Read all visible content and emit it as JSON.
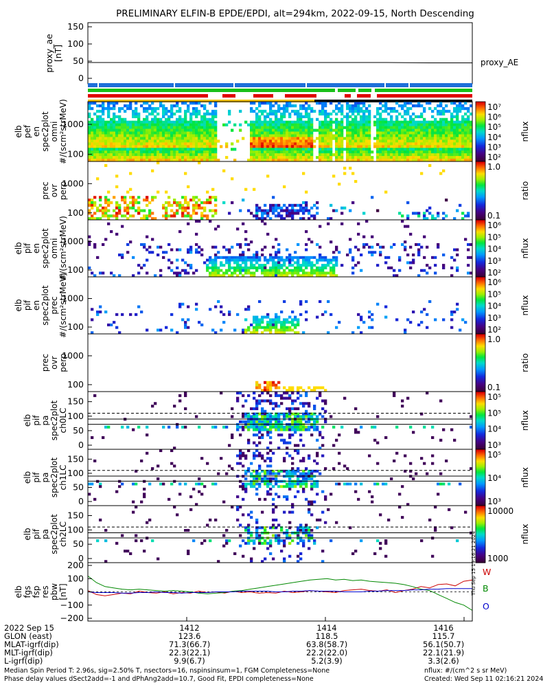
{
  "title": "PRELIMINARY ELFIN-B EPDE/EPDI, alt=294km, 2022-09-15, North Descending",
  "chart_data": {
    "type": "heatmap",
    "panels": [
      {
        "id": "proxy-ae",
        "ylabel": [
          "proxy_ae",
          "[nT]"
        ],
        "yticks": [
          "150",
          "100",
          "50",
          "0"
        ],
        "legend": "proxy_AE",
        "series": [
          {
            "name": "proxy_AE",
            "values": [
              46,
              46,
              46,
              46,
              46,
              46,
              46,
              46,
              45,
              45
            ]
          }
        ]
      },
      {
        "id": "elb-pef-en-spec2plot-omni",
        "ylabel": [
          "elb",
          "pef",
          "en",
          "spec2plot",
          "omni",
          "#/(scm²strMeV)"
        ],
        "yticks": [
          "1000",
          "100"
        ],
        "cbar_ticks": [
          "10⁷",
          "10⁶",
          "10⁵",
          "10⁴",
          "10³",
          "10²"
        ],
        "cbar_label": "nflux"
      },
      {
        "id": "prec-ovr-perp-e",
        "ylabel": [
          "prec",
          "ovr",
          "perp"
        ],
        "yticks": [
          "1000",
          "100"
        ],
        "cbar_ticks": [
          "1.0",
          "0.1"
        ],
        "cbar_label": "ratio"
      },
      {
        "id": "elb-pif-en-spec2plot-omni",
        "ylabel": [
          "elb",
          "pif",
          "en",
          "spec2plot",
          "omni",
          "#/(scm²strMeV)"
        ],
        "yticks": [
          "1000",
          "100"
        ],
        "cbar_ticks": [
          "10⁶",
          "10⁵",
          "10⁴",
          "10³",
          "10²"
        ],
        "cbar_label": "nflux"
      },
      {
        "id": "elb-pif-en-spec2plot-prec",
        "ylabel": [
          "elb",
          "pif",
          "en",
          "spec2plot",
          "prec",
          "#/(scm²strMeV)"
        ],
        "yticks": [
          "1000",
          "100"
        ],
        "cbar_ticks": [
          "10⁶",
          "10⁵",
          "10⁴",
          "10³",
          "10²"
        ],
        "cbar_label": "nflux"
      },
      {
        "id": "prec-ovr-perp-i",
        "ylabel": [
          "prec",
          "ovr",
          "perp"
        ],
        "yticks": [
          "1000",
          "100"
        ],
        "cbar_ticks": [
          "1.0",
          "0.1"
        ],
        "cbar_label": "ratio"
      },
      {
        "id": "elb-pif-pa-spec2plot-ch0LC",
        "ylabel": [
          "elb",
          "pif",
          "pa",
          "spec2plot",
          "ch0LC"
        ],
        "yticks": [
          "150",
          "100",
          "50",
          "0"
        ],
        "cbar_ticks": [
          "10⁵",
          "10⁵",
          "10⁴",
          "10³"
        ],
        "cbar_label": "nflux"
      },
      {
        "id": "elb-pif-pa-spec2plot-ch1LC",
        "ylabel": [
          "elb",
          "pif",
          "pa",
          "spec2plot",
          "ch1LC"
        ],
        "yticks": [
          "150",
          "100",
          "50",
          "0"
        ],
        "cbar_ticks": [
          "10⁵",
          "10⁴",
          "10³"
        ],
        "cbar_label": "nflux"
      },
      {
        "id": "elb-pif-pa-spec2plot-ch2LC",
        "ylabel": [
          "elb",
          "pif",
          "pa",
          "spec2plot",
          "ch2LC"
        ],
        "yticks": [
          "150",
          "100",
          "50",
          "0"
        ],
        "cbar_ticks": [
          "10000",
          "1000"
        ],
        "cbar_label": "nflux"
      },
      {
        "id": "elb-fgs-fsp-res-pbw",
        "ylabel": [
          "elb",
          "fgs",
          "fsp",
          "res",
          "pbw",
          "[nT]"
        ],
        "yticks": [
          "200",
          "100",
          "0",
          "−100",
          "−200"
        ],
        "legend_items": [
          "W",
          "B",
          "O"
        ],
        "series": [
          {
            "name": "W",
            "color": "#cc0000",
            "values": [
              10,
              -20,
              -30,
              -20,
              -10,
              -15,
              5,
              -5,
              -10,
              0,
              -15,
              -5,
              -10,
              5,
              -5,
              0,
              -10,
              5,
              -5,
              0,
              -10,
              -5,
              -10,
              5,
              -5,
              0,
              10,
              5,
              0,
              -5,
              10,
              15,
              20,
              10,
              5,
              15,
              -5,
              10,
              20,
              40,
              30,
              55,
              60,
              45,
              80,
              90
            ]
          },
          {
            "name": "B",
            "color": "#008800",
            "values": [
              120,
              70,
              40,
              30,
              20,
              15,
              20,
              15,
              10,
              5,
              10,
              5,
              0,
              -10,
              -15,
              -10,
              -5,
              5,
              10,
              20,
              30,
              40,
              50,
              60,
              70,
              80,
              90,
              95,
              100,
              90,
              95,
              85,
              90,
              80,
              75,
              70,
              65,
              55,
              40,
              20,
              10,
              -20,
              -50,
              -80,
              -100,
              -140
            ]
          },
          {
            "name": "O",
            "color": "#0000cc",
            "values": [
              0,
              -5,
              -5,
              -5,
              -10,
              -10,
              -5,
              -5,
              0,
              -5,
              -5,
              -10,
              -5,
              -5,
              -5,
              0,
              0,
              0,
              5,
              5,
              5,
              5,
              0,
              0,
              5,
              5,
              10,
              5,
              5,
              5,
              0,
              0,
              0,
              5,
              5,
              10,
              10,
              10,
              15,
              15,
              20,
              20,
              25,
              25,
              25,
              25
            ]
          }
        ]
      }
    ],
    "side_label": "Thu Sep 15 19:16:21 2024",
    "x_ticks": [
      "1412",
      "1414",
      "1416"
    ]
  },
  "footer": {
    "rows": [
      {
        "label": "2022 Sep 15",
        "values": [
          "1412",
          "1414",
          "1416"
        ]
      },
      {
        "label": "GLON (east)",
        "values": [
          "123.6",
          "118.5",
          "115.7"
        ]
      },
      {
        "label": "MLAT-igrf(dip)",
        "values": [
          "71.3(66.7)",
          "63.8(58.7)",
          "56.1(50.7)"
        ]
      },
      {
        "label": "MLT-igrf(dip)",
        "values": [
          "22.3(22.1)",
          "22.2(22.0)",
          "22.1(21.9)"
        ]
      },
      {
        "label": "L-igrf(dip)",
        "values": [
          "9.9(6.7)",
          "5.2(3.9)",
          "3.3(2.6)"
        ]
      }
    ],
    "note_left_1": "Median Spin Period T: 2.96s, sig=2.50% T, nsectors=16, nspinsinsum=1, FGM Completeness=None",
    "note_left_2": "Phase delay values dSect2add=-1 and dPhAng2add=10.7, Good Fit, EPDI completeness=None",
    "note_right_1": "nflux: #/(cm^2 s sr MeV)",
    "note_right_2": "Created: Wed Sep 11 02:16:21 2024"
  }
}
